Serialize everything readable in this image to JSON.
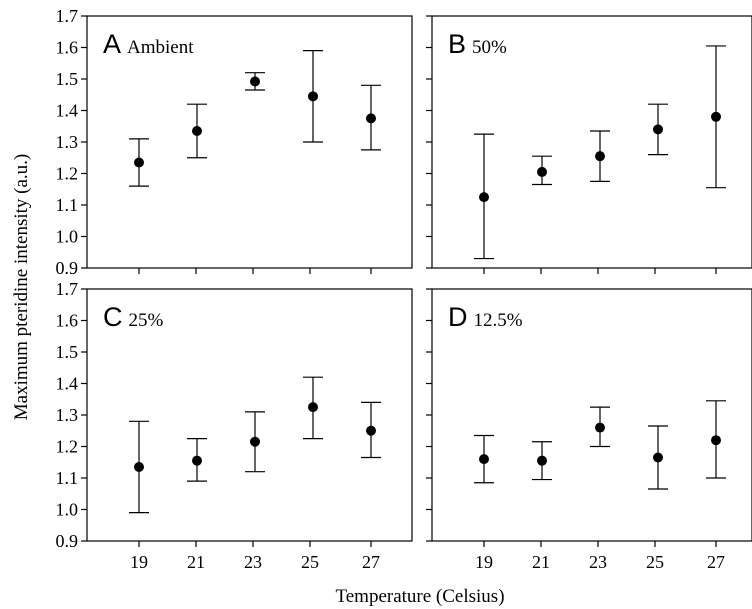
{
  "chart_data": {
    "type": "scatter",
    "xlabel": "Temperature (Celsius)",
    "ylabel": "Maximum pteridine intensity (a.u.)",
    "x_ticks": [
      "19",
      "21",
      "23",
      "25",
      "27"
    ],
    "y_ticks": [
      "0.9",
      "1.0",
      "1.1",
      "1.2",
      "1.3",
      "1.4",
      "1.5",
      "1.6",
      "1.7"
    ],
    "ylim": [
      0.9,
      1.7
    ],
    "xlim": [
      17.5,
      28.5
    ],
    "grid": false,
    "panels": [
      {
        "letter": "A",
        "name": "Ambient",
        "x": [
          19,
          21,
          23,
          25,
          27
        ],
        "mean": [
          1.235,
          1.335,
          1.492,
          1.445,
          1.375
        ],
        "lower": [
          1.16,
          1.25,
          1.465,
          1.3,
          1.275
        ],
        "upper": [
          1.31,
          1.42,
          1.52,
          1.59,
          1.48
        ]
      },
      {
        "letter": "B",
        "name": "50%",
        "x": [
          19,
          21,
          23,
          25,
          27
        ],
        "mean": [
          1.125,
          1.205,
          1.255,
          1.34,
          1.38
        ],
        "lower": [
          0.93,
          1.165,
          1.175,
          1.26,
          1.155
        ],
        "upper": [
          1.325,
          1.255,
          1.335,
          1.42,
          1.605
        ]
      },
      {
        "letter": "C",
        "name": "25%",
        "x": [
          19,
          21,
          23,
          25,
          27
        ],
        "mean": [
          1.135,
          1.155,
          1.215,
          1.325,
          1.25
        ],
        "lower": [
          0.99,
          1.09,
          1.12,
          1.225,
          1.165
        ],
        "upper": [
          1.28,
          1.225,
          1.31,
          1.42,
          1.34
        ]
      },
      {
        "letter": "D",
        "name": "12.5%",
        "x": [
          19,
          21,
          23,
          25,
          27
        ],
        "mean": [
          1.16,
          1.155,
          1.26,
          1.165,
          1.22
        ],
        "lower": [
          1.085,
          1.095,
          1.2,
          1.065,
          1.1
        ],
        "upper": [
          1.235,
          1.215,
          1.325,
          1.265,
          1.345
        ]
      }
    ]
  }
}
